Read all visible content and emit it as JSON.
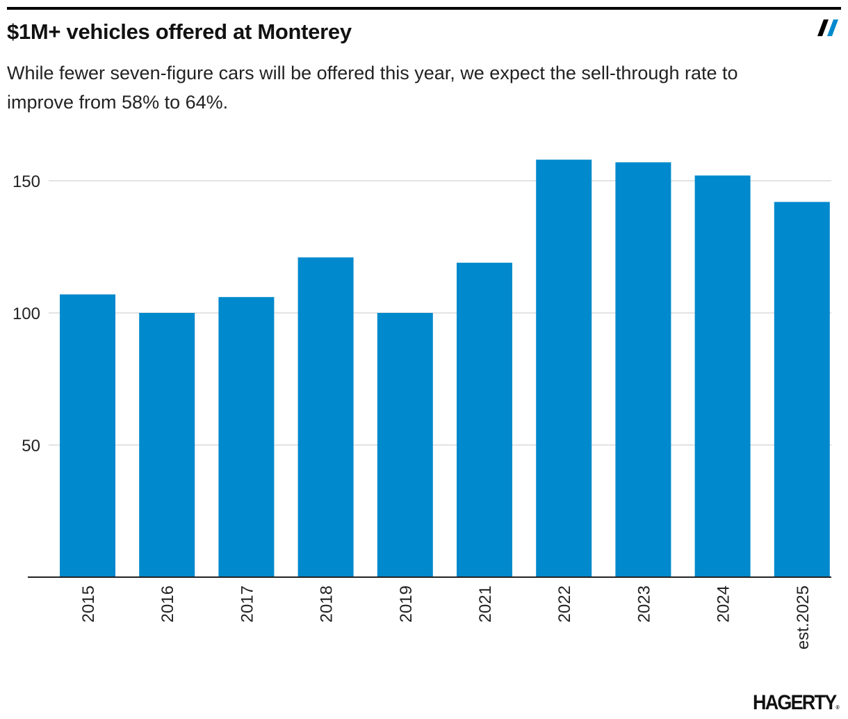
{
  "header": {
    "title": "$1M+ vehicles offered at Monterey",
    "subtitle": "While fewer seven-figure cars will be offered this year, we expect the sell-through rate to improve from 58% to 64%."
  },
  "brand": {
    "logo_text": "HAGERTY",
    "mark_icon": "double-slash-icon",
    "mark_colors": [
      "#000000",
      "#0089cc"
    ]
  },
  "chart_data": {
    "type": "bar",
    "title": "$1M+ vehicles offered at Monterey",
    "categories": [
      "2015",
      "2016",
      "2017",
      "2018",
      "2019",
      "2021",
      "2022",
      "2023",
      "2024",
      "est.2025"
    ],
    "values": [
      107,
      100,
      106,
      121,
      100,
      119,
      158,
      157,
      152,
      142
    ],
    "ylim": [
      0,
      165
    ],
    "yticks": [
      50,
      100,
      150
    ],
    "xlabel": "",
    "ylabel": "",
    "grid": true,
    "bar_color": "#0089cc"
  }
}
